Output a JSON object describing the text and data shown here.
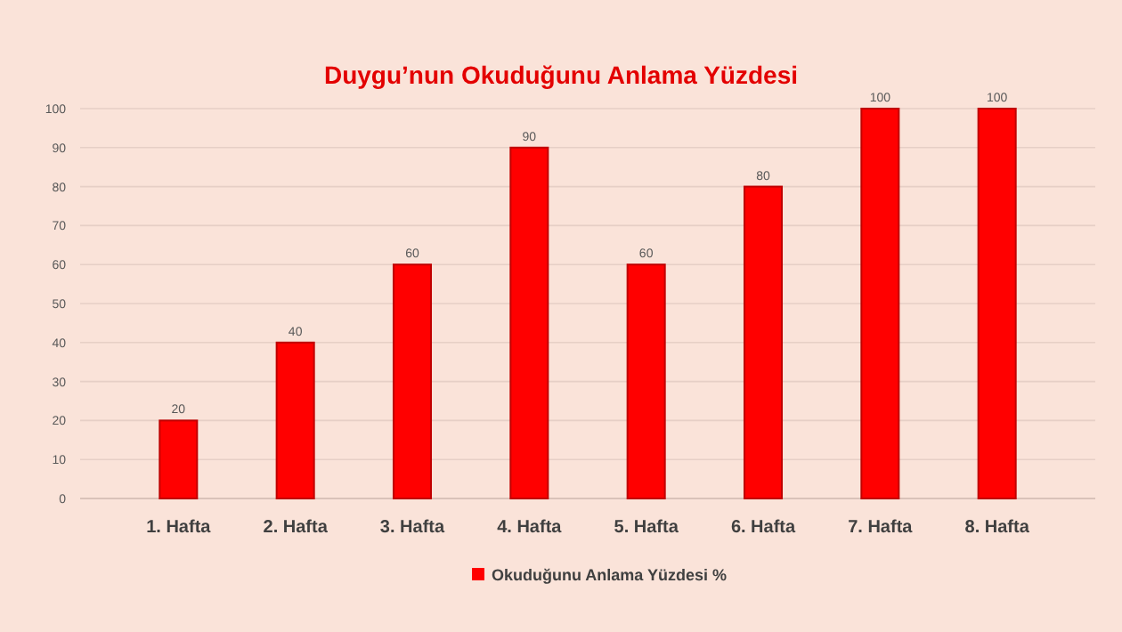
{
  "chart_data": {
    "type": "bar",
    "title": "Duygu’nun Okuduğunu Anlama Yüzdesi",
    "categories": [
      "1. Hafta",
      "2. Hafta",
      "3. Hafta",
      "4. Hafta",
      "5. Hafta",
      "6. Hafta",
      "7. Hafta",
      "8. Hafta"
    ],
    "series": [
      {
        "name": "Okuduğunu Anlama Yüzdesi %",
        "color": "#ff0000",
        "values": [
          20,
          40,
          60,
          90,
          60,
          80,
          100,
          100
        ]
      }
    ],
    "ylim": [
      0,
      100
    ],
    "yticks": [
      0,
      10,
      20,
      30,
      40,
      50,
      60,
      70,
      80,
      90,
      100
    ],
    "grid": "y",
    "legend": "bottom",
    "data_labels": true
  }
}
